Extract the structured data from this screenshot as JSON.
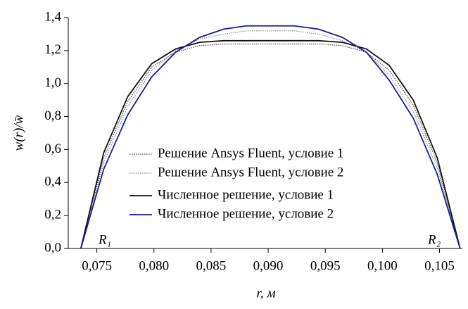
{
  "chart_data": {
    "type": "line",
    "x_label": "r, м",
    "y_label": "w(r)/w̄",
    "annotations": [
      "R₁",
      "R₂"
    ],
    "x": [
      0.0736,
      0.0756,
      0.0777,
      0.0798,
      0.0819,
      0.084,
      0.0861,
      0.0881,
      0.0902,
      0.0923,
      0.0944,
      0.0965,
      0.0986,
      0.1006,
      0.1027,
      0.1048,
      0.1068
    ],
    "series": [
      {
        "name": "Решение Ansys Fluent, условие 1",
        "color": "#444444",
        "style": "dotted",
        "values": [
          0,
          0.55,
          0.89,
          1.1,
          1.19,
          1.23,
          1.24,
          1.24,
          1.24,
          1.24,
          1.24,
          1.23,
          1.19,
          1.08,
          0.87,
          0.52,
          0
        ]
      },
      {
        "name": "Решение Ansys Fluent, условие 2",
        "color": "#888888",
        "style": "dotted",
        "values": [
          0,
          0.52,
          0.86,
          1.08,
          1.2,
          1.27,
          1.3,
          1.32,
          1.32,
          1.32,
          1.3,
          1.26,
          1.19,
          1.05,
          0.83,
          0.49,
          0
        ]
      },
      {
        "name": "Численное решение, условие 1",
        "color": "#111111",
        "style": "solid",
        "values": [
          0,
          0.58,
          0.92,
          1.12,
          1.21,
          1.25,
          1.26,
          1.26,
          1.26,
          1.26,
          1.26,
          1.25,
          1.21,
          1.11,
          0.9,
          0.55,
          0
        ]
      },
      {
        "name": "Численное решение, условие 2",
        "color": "#1a1aa0",
        "style": "solid",
        "values": [
          0,
          0.48,
          0.81,
          1.04,
          1.19,
          1.28,
          1.33,
          1.35,
          1.35,
          1.35,
          1.33,
          1.28,
          1.19,
          1.02,
          0.79,
          0.45,
          0
        ]
      }
    ],
    "xlim": [
      0.0725,
      0.107
    ],
    "ylim": [
      0,
      1.4
    ],
    "xticks": [
      {
        "value": 0.075,
        "label": "0,075"
      },
      {
        "value": 0.08,
        "label": "0,080"
      },
      {
        "value": 0.085,
        "label": "0,085"
      },
      {
        "value": 0.09,
        "label": "0,090"
      },
      {
        "value": 0.095,
        "label": "0,095"
      },
      {
        "value": 0.1,
        "label": "0,100"
      },
      {
        "value": 0.105,
        "label": "0,105"
      }
    ],
    "yticks": [
      {
        "value": 0,
        "label": "0,0"
      },
      {
        "value": 0.2,
        "label": "0,2"
      },
      {
        "value": 0.4,
        "label": "0,4"
      },
      {
        "value": 0.6,
        "label": "0,6"
      },
      {
        "value": 0.8,
        "label": "0,8"
      },
      {
        "value": 1.0,
        "label": "1,0"
      },
      {
        "value": 1.2,
        "label": "1,2"
      },
      {
        "value": 1.4,
        "label": "1,4"
      }
    ],
    "grid": false
  }
}
